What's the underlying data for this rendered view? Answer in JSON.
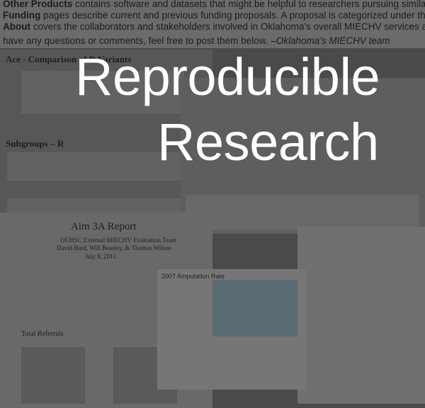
{
  "intro": [
    {
      "bold": "Other Products",
      "text": "contains software and datasets that might be helpful to researchers pursuing similar questions."
    },
    {
      "bold": "Funding",
      "text": "pages describe current and previous funding proposals. A proposal is categorized under the year it was submitted."
    },
    {
      "bold": "About",
      "text": "covers the collaborators and stakeholders involved in Oklahoma's overall MIECHV services and evaluations."
    },
    {
      "bold": "–Oklahoma's MIECHV team",
      "text": "have any questions or comments, feel free to post them below."
    }
  ],
  "collage": [
    "Ace - Comparison of R Variants",
    "Subgroups – R",
    "Aim 3A Report",
    "OUHSC External MIECHV Evaluation Team",
    "David Bard, Will Beasley, & Thomas Wilson",
    "July 8, 2011",
    "Total Referrals",
    "2007 Amputation Rate"
  ],
  "title": [
    "Reproducible",
    "Research"
  ]
}
